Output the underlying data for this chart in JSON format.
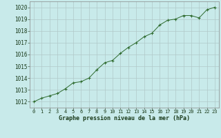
{
  "x": [
    0,
    1,
    2,
    3,
    4,
    5,
    6,
    7,
    8,
    9,
    10,
    11,
    12,
    13,
    14,
    15,
    16,
    17,
    18,
    19,
    20,
    21,
    22,
    23
  ],
  "y": [
    1012.0,
    1012.3,
    1012.5,
    1012.7,
    1013.1,
    1013.6,
    1013.7,
    1014.0,
    1014.7,
    1015.3,
    1015.5,
    1016.1,
    1016.6,
    1017.0,
    1017.5,
    1017.8,
    1018.5,
    1018.9,
    1019.0,
    1019.3,
    1019.3,
    1019.1,
    1019.8,
    1020.0
  ],
  "line_color": "#2d6a2d",
  "marker": "+",
  "bg_color": "#c8eaea",
  "grid_color": "#b0c8c8",
  "xlabel": "Graphe pression niveau de la mer (hPa)",
  "xlabel_color": "#1a3a1a",
  "tick_color": "#1a3a1a",
  "ylim": [
    1011.5,
    1020.5
  ],
  "xlim": [
    -0.5,
    23.5
  ],
  "yticks": [
    1012,
    1013,
    1014,
    1015,
    1016,
    1017,
    1018,
    1019,
    1020
  ],
  "xticks": [
    0,
    1,
    2,
    3,
    4,
    5,
    6,
    7,
    8,
    9,
    10,
    11,
    12,
    13,
    14,
    15,
    16,
    17,
    18,
    19,
    20,
    21,
    22,
    23
  ],
  "figsize": [
    3.2,
    2.0
  ],
  "dpi": 100
}
